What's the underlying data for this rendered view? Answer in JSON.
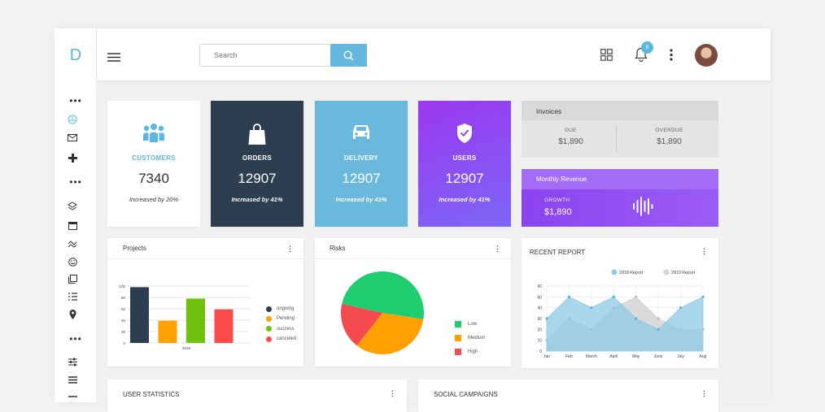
{
  "sidebar": {
    "logo": "D"
  },
  "search": {
    "placeholder": "Search"
  },
  "topbar": {
    "notification_count": "6"
  },
  "stats": [
    {
      "label": "CUSTOMERS",
      "value": "7340",
      "sub": "Increased by 20%",
      "icon": "users-icon",
      "bg": "#ffffff",
      "fg": "#5cb7e0"
    },
    {
      "label": "ORDERS",
      "value": "12907",
      "sub": "Increased by 41%",
      "icon": "shopping-bag-icon",
      "bg": "#2c3e50",
      "fg": "#ffffff"
    },
    {
      "label": "DELIVERY",
      "value": "12907",
      "sub": "Increased by 41%",
      "icon": "car-icon",
      "bg": "#6ab9dd",
      "fg": "#ffffff"
    },
    {
      "label": "USERS",
      "value": "12907",
      "sub": "Increased by 41%",
      "icon": "shield-check-icon",
      "bg": "#9646f1",
      "fg": "#ffffff"
    }
  ],
  "invoices": {
    "title": "Invoices",
    "due_label": "DUE",
    "due_value": "$1,890",
    "overdue_label": "OVERDUE",
    "overdue_value": "$1,890"
  },
  "revenue": {
    "title": "Monthly Revenue",
    "growth_label": "GROWTH",
    "growth_value": "$1,890"
  },
  "panels": {
    "projects": "Projects",
    "risks": "Risks",
    "recent": "RECENT REPORT",
    "user_statistics": "USER STATISTICS",
    "social_campaigns": "SOCIAL CAMPAIGNS"
  },
  "chart_data": [
    {
      "type": "bar",
      "categories": [
        "ongoing",
        "pending",
        "success",
        "canceled"
      ],
      "values": [
        98,
        39,
        78,
        59
      ],
      "colors": [
        "#2c3e50",
        "#ffa200",
        "#6fc20b",
        "#fb4a4a"
      ],
      "xlabel": "2018",
      "ylim": [
        0,
        100
      ],
      "yticks": [
        "0",
        "20",
        "40",
        "60",
        "80",
        "100"
      ],
      "legend": [
        "ongoing",
        "Pending",
        "success",
        "canceled"
      ]
    },
    {
      "type": "pie",
      "categories": [
        "Low",
        "Medium",
        "High"
      ],
      "values": [
        49,
        33,
        18
      ],
      "colors": [
        "#1ecd6e",
        "#ffa000",
        "#f44a4f"
      ]
    },
    {
      "type": "area",
      "categories": [
        "Jan",
        "Feb",
        "March",
        "April",
        "May",
        "June",
        "July",
        "Aug"
      ],
      "yticks": [
        "0",
        "10",
        "20",
        "30",
        "40",
        "50",
        "60"
      ],
      "ylim": [
        0,
        60
      ],
      "series": [
        {
          "name": "2018 Report",
          "values": [
            30,
            50,
            40,
            50,
            30,
            20,
            40,
            50
          ],
          "color": "#8ec9e6"
        },
        {
          "name": "2019 Report",
          "values": [
            10,
            30,
            20,
            40,
            50,
            30,
            20,
            20
          ],
          "color": "#d6d6d6"
        }
      ]
    }
  ]
}
